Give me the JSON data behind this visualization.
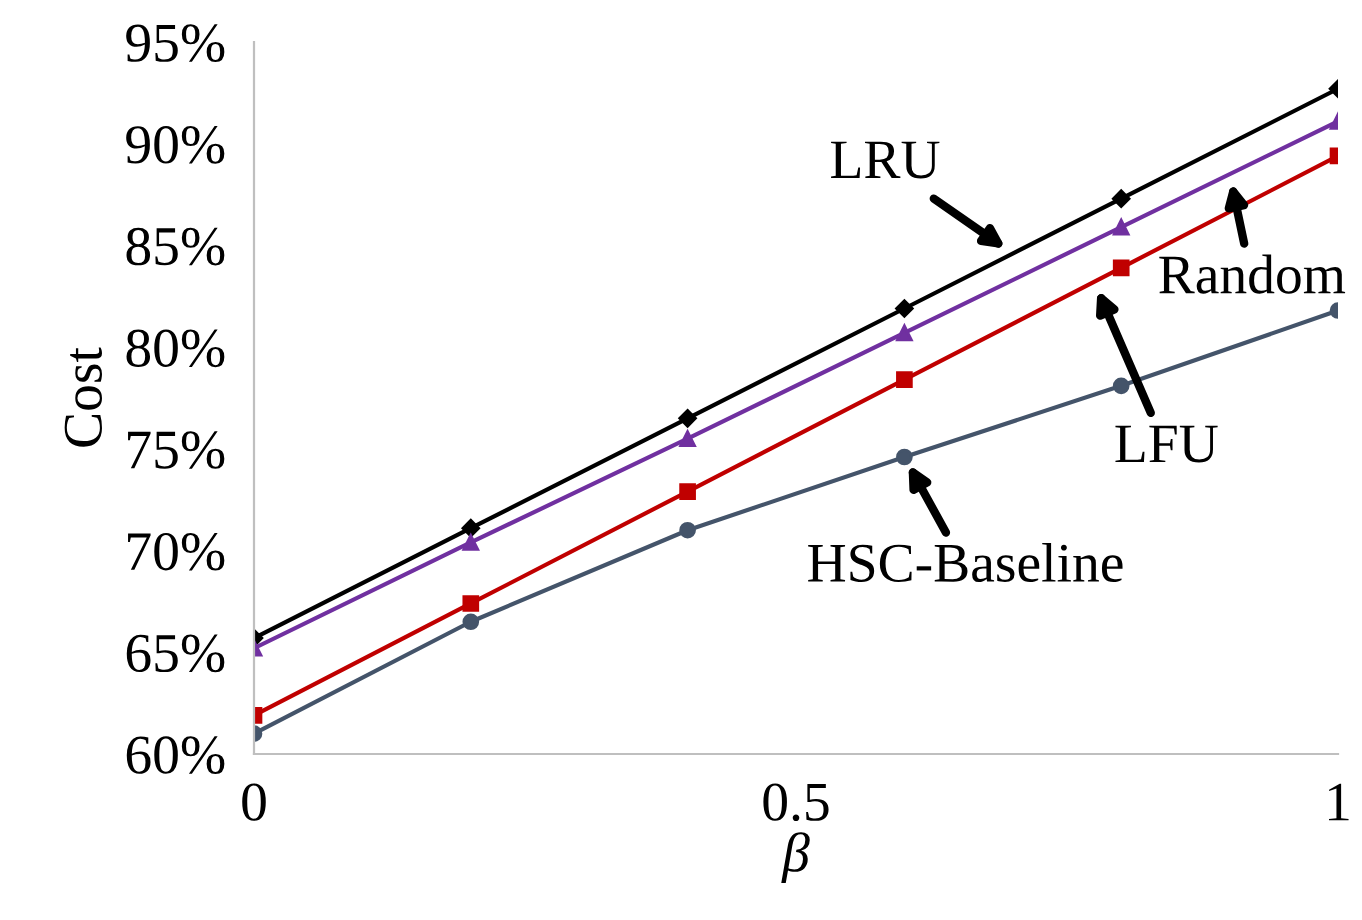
{
  "chart_data": {
    "type": "line",
    "xlabel": "β",
    "ylabel": "Cost",
    "x": [
      0,
      0.2,
      0.4,
      0.6,
      0.8,
      1
    ],
    "xlim": [
      0,
      1
    ],
    "xticks": [
      0,
      0.5,
      1
    ],
    "ylim": [
      60,
      95
    ],
    "yticks": [
      {
        "value": 60,
        "label": "60%"
      },
      {
        "value": 65,
        "label": "65%"
      },
      {
        "value": 70,
        "label": "70%"
      },
      {
        "value": 75,
        "label": "75%"
      },
      {
        "value": 80,
        "label": "80%"
      },
      {
        "value": 85,
        "label": "85%"
      },
      {
        "value": 90,
        "label": "90%"
      },
      {
        "value": 95,
        "label": "95%"
      }
    ],
    "grid": false,
    "legend": false,
    "series": [
      {
        "color": "#000000",
        "marker": "diamond",
        "values": [
          65.7,
          71.1,
          76.5,
          81.9,
          87.3,
          92.7
        ]
      },
      {
        "color": "#7030a0",
        "marker": "triangle",
        "values": [
          65.2,
          70.4,
          75.5,
          80.7,
          85.9,
          91.1
        ]
      },
      {
        "color": "#c00000",
        "marker": "square",
        "values": [
          61.9,
          67.4,
          72.9,
          78.4,
          83.9,
          89.4
        ]
      },
      {
        "color": "#44546a",
        "marker": "circle",
        "values": [
          61.0,
          66.5,
          71.0,
          74.6,
          78.1,
          81.8
        ]
      }
    ],
    "annotations": [
      {
        "text": "LRU",
        "x": 0.7,
        "y": 84.6
      },
      {
        "text": "Random",
        "x": 0.9,
        "y": 88.5
      },
      {
        "text": "LFU",
        "x": 0.775,
        "y": 83.2
      },
      {
        "text": "HSC-Baseline",
        "x": 0.6,
        "y": 74.6
      }
    ]
  }
}
